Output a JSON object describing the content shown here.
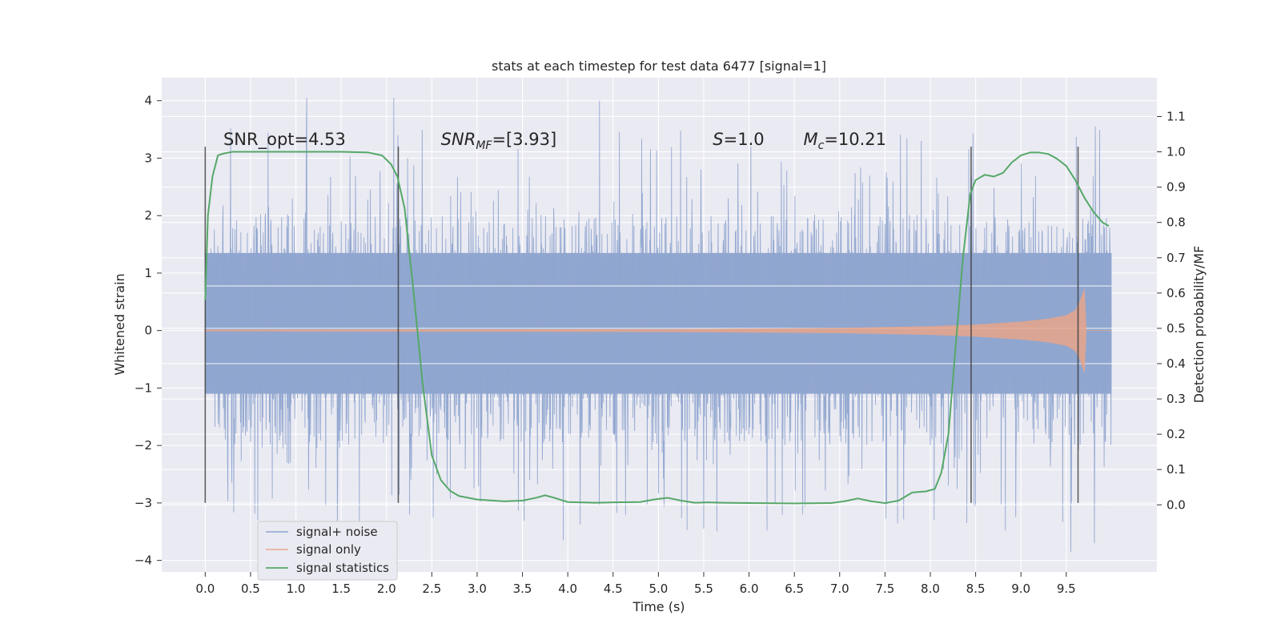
{
  "chart_data": {
    "type": "line",
    "title": "stats at each timestep for test data 6477 [signal=1]",
    "xlabel": "Time (s)",
    "ylabel": "Whitened strain",
    "ylabel_right": "Detection probability/MF",
    "xlim": [
      -0.48,
      10.5
    ],
    "ylim": [
      -4.2,
      4.4
    ],
    "ylim_right": [
      -0.19,
      1.21
    ],
    "x_ticks": [
      0.0,
      0.5,
      1.0,
      1.5,
      2.0,
      2.5,
      3.0,
      3.5,
      4.0,
      4.5,
      5.0,
      5.5,
      6.0,
      6.5,
      7.0,
      7.5,
      8.0,
      8.5,
      9.0,
      9.5
    ],
    "x_tick_labels": [
      "0.0",
      "0.5",
      "1.0",
      "1.5",
      "2.0",
      "2.5",
      "3.0",
      "3.5",
      "4.0",
      "4.5",
      "5.0",
      "5.5",
      "6.0",
      "6.5",
      "7.0",
      "7.5",
      "8.0",
      "8.5",
      "9.0",
      "9.5"
    ],
    "y_ticks": [
      -4,
      -3,
      -2,
      -1,
      0,
      1,
      2,
      3,
      4
    ],
    "y_tick_labels": [
      "−4",
      "−3",
      "−2",
      "−1",
      "0",
      "1",
      "2",
      "3",
      "4"
    ],
    "y_right_ticks": [
      0.0,
      0.1,
      0.2,
      0.3,
      0.4,
      0.5,
      0.6,
      0.7,
      0.8,
      0.9,
      1.0,
      1.1
    ],
    "y_right_tick_labels": [
      "0.0",
      "0.1",
      "0.2",
      "0.3",
      "0.4",
      "0.5",
      "0.6",
      "0.7",
      "0.8",
      "0.9",
      "1.0",
      "1.1"
    ],
    "grid": true,
    "legend_position": "lower-left",
    "series": [
      {
        "name": "signal+ noise",
        "color": "#8fa5cf",
        "style": "dense noise trace",
        "x_range": [
          0.0,
          10.0
        ],
        "core_band": [
          -1.1,
          1.35
        ],
        "peak_max": 4.05,
        "peak_min": -3.65
      },
      {
        "name": "signal only",
        "color": "#e8a58a",
        "style": "chirp envelope",
        "points": [
          {
            "x": 0.0,
            "amp": 0.01
          },
          {
            "x": 5.0,
            "amp": 0.02
          },
          {
            "x": 7.0,
            "amp": 0.04
          },
          {
            "x": 8.0,
            "amp": 0.07
          },
          {
            "x": 8.5,
            "amp": 0.1
          },
          {
            "x": 9.0,
            "amp": 0.15
          },
          {
            "x": 9.3,
            "amp": 0.2
          },
          {
            "x": 9.5,
            "amp": 0.26
          },
          {
            "x": 9.6,
            "amp": 0.35
          },
          {
            "x": 9.65,
            "amp": 0.5
          },
          {
            "x": 9.7,
            "amp": 0.72
          },
          {
            "x": 9.72,
            "amp": 0.0
          },
          {
            "x": 10.0,
            "amp": 0.0
          }
        ]
      },
      {
        "name": "signal statistics",
        "color": "#55a868",
        "axis": "right",
        "x": [
          0.0,
          0.03,
          0.08,
          0.14,
          0.2,
          0.3,
          0.5,
          1.0,
          1.5,
          1.8,
          1.95,
          2.05,
          2.12,
          2.2,
          2.3,
          2.4,
          2.5,
          2.6,
          2.7,
          2.8,
          3.0,
          3.3,
          3.5,
          3.65,
          3.75,
          3.85,
          4.0,
          4.3,
          4.5,
          4.8,
          4.95,
          5.1,
          5.25,
          5.4,
          5.55,
          5.7,
          6.0,
          6.5,
          6.9,
          7.05,
          7.2,
          7.35,
          7.5,
          7.65,
          7.8,
          7.95,
          8.05,
          8.12,
          8.2,
          8.28,
          8.36,
          8.44,
          8.5,
          8.6,
          8.7,
          8.8,
          8.9,
          9.0,
          9.1,
          9.2,
          9.3,
          9.4,
          9.5,
          9.6,
          9.7,
          9.8,
          9.9,
          9.97
        ],
        "values": [
          0.58,
          0.82,
          0.93,
          0.99,
          0.995,
          1.0,
          1.0,
          1.0,
          1.0,
          0.998,
          0.99,
          0.965,
          0.93,
          0.84,
          0.6,
          0.34,
          0.14,
          0.07,
          0.04,
          0.025,
          0.015,
          0.01,
          0.012,
          0.02,
          0.027,
          0.02,
          0.008,
          0.006,
          0.007,
          0.008,
          0.015,
          0.02,
          0.012,
          0.006,
          0.007,
          0.006,
          0.005,
          0.004,
          0.005,
          0.01,
          0.018,
          0.01,
          0.005,
          0.012,
          0.035,
          0.038,
          0.045,
          0.09,
          0.2,
          0.45,
          0.7,
          0.88,
          0.92,
          0.935,
          0.93,
          0.94,
          0.97,
          0.99,
          0.998,
          0.998,
          0.994,
          0.98,
          0.96,
          0.92,
          0.87,
          0.83,
          0.8,
          0.79
        ]
      }
    ],
    "vertical_lines": [
      {
        "x": 0.0,
        "y_range": [
          -3.0,
          3.2
        ]
      },
      {
        "x": 2.13,
        "y_range": [
          -3.0,
          3.2
        ]
      },
      {
        "x": 8.45,
        "y_range": [
          -3.0,
          3.2
        ]
      },
      {
        "x": 9.63,
        "y_range": [
          -3.0,
          3.2
        ]
      }
    ],
    "annotations": [
      {
        "x": 0.2,
        "y": 3.2,
        "text": "SNR_opt=4.53",
        "style": "plain"
      },
      {
        "x": 2.6,
        "y": 3.2,
        "base": "SNR",
        "sub": "MF",
        "rest": "=[3.93]",
        "style": "math"
      },
      {
        "x": 5.6,
        "y": 3.2,
        "base": "S",
        "sub": "",
        "rest": "=1.0",
        "style": "math"
      },
      {
        "x": 6.6,
        "y": 3.2,
        "base": "M",
        "sub": "c",
        "rest": "=10.21",
        "style": "math"
      }
    ]
  }
}
